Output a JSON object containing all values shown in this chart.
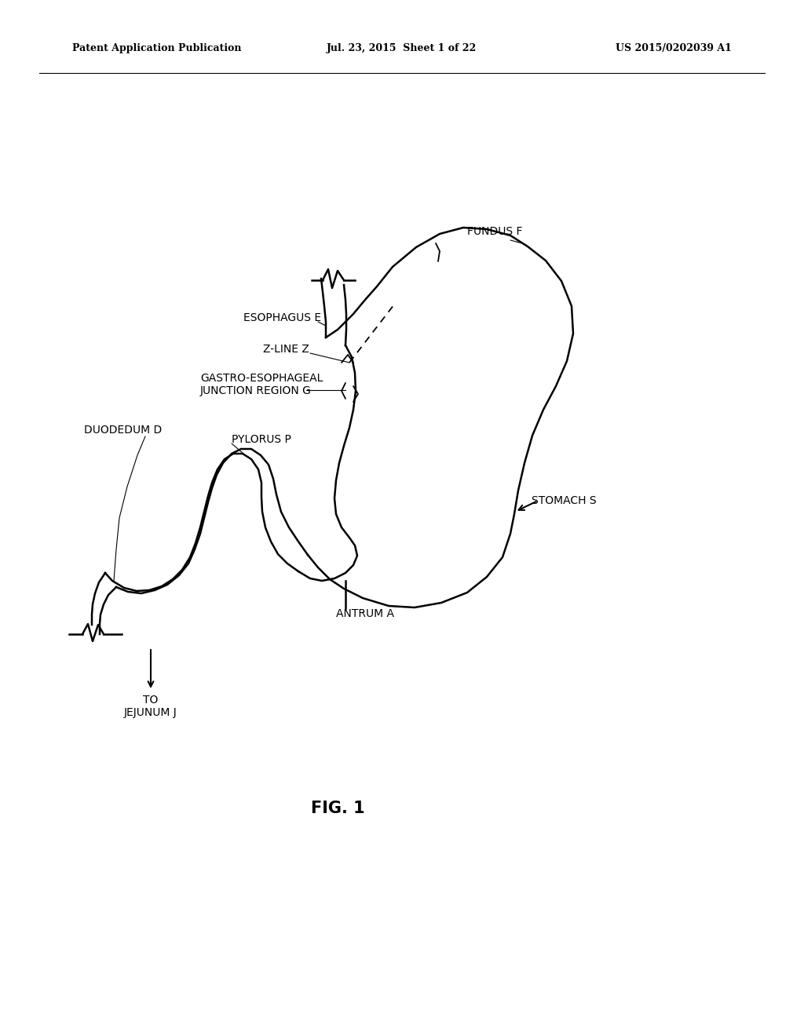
{
  "background_color": "#ffffff",
  "line_color": "#000000",
  "header_left": "Patent Application Publication",
  "header_center": "Jul. 23, 2015  Sheet 1 of 22",
  "header_right": "US 2015/0202039 A1",
  "fig_label": "FIG. 1"
}
